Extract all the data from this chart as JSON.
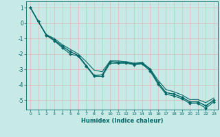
{
  "xlabel": "Humidex (Indice chaleur)",
  "background_color": "#c8eae6",
  "grid_color": "#e0b8b8",
  "line_color": "#006666",
  "xlim": [
    -0.5,
    23.5
  ],
  "ylim": [
    -5.6,
    1.4
  ],
  "yticks": [
    1,
    0,
    -1,
    -2,
    -3,
    -4,
    -5
  ],
  "xticks": [
    0,
    1,
    2,
    3,
    4,
    5,
    6,
    7,
    8,
    9,
    10,
    11,
    12,
    13,
    14,
    15,
    16,
    17,
    18,
    19,
    20,
    21,
    22,
    23
  ],
  "line1_x": [
    0,
    1,
    2,
    3,
    4,
    5,
    6,
    7,
    8,
    9,
    10,
    11,
    12,
    13,
    14,
    15,
    16,
    17,
    18,
    19,
    20,
    21,
    22,
    23
  ],
  "line1_y": [
    1.0,
    0.1,
    -0.75,
    -1.1,
    -1.5,
    -1.85,
    -2.1,
    -2.75,
    -3.4,
    -3.35,
    -2.5,
    -2.55,
    -2.55,
    -2.65,
    -2.6,
    -3.0,
    -3.85,
    -4.5,
    -4.6,
    -4.8,
    -5.1,
    -5.1,
    -5.35,
    -5.0
  ],
  "line2_x": [
    0,
    1,
    2,
    3,
    4,
    5,
    6,
    7,
    8,
    9,
    10,
    11,
    12,
    13,
    14,
    15,
    16,
    17,
    18,
    19,
    20,
    21,
    22,
    23
  ],
  "line2_y": [
    1.0,
    0.05,
    -0.75,
    -1.0,
    -1.4,
    -1.7,
    -2.0,
    -2.5,
    -3.05,
    -3.15,
    -2.45,
    -2.45,
    -2.5,
    -2.6,
    -2.55,
    -2.95,
    -3.7,
    -4.3,
    -4.45,
    -4.65,
    -4.95,
    -4.95,
    -5.15,
    -4.85
  ],
  "line3_x": [
    0,
    1,
    2,
    3,
    4,
    5,
    6,
    7,
    8,
    9,
    10,
    11,
    12,
    13,
    14,
    15,
    16,
    17,
    18,
    19,
    20,
    21,
    22,
    23
  ],
  "line3_y": [
    1.0,
    0.1,
    -0.8,
    -1.15,
    -1.6,
    -2.0,
    -2.15,
    -2.8,
    -3.45,
    -3.45,
    -2.6,
    -2.6,
    -2.6,
    -2.7,
    -2.65,
    -3.1,
    -3.95,
    -4.6,
    -4.72,
    -4.9,
    -5.2,
    -5.2,
    -5.5,
    -5.1
  ],
  "line4_x": [
    0,
    1,
    2,
    3,
    4,
    5,
    6,
    7,
    8,
    9,
    10,
    11,
    12,
    13,
    14,
    15,
    16,
    17,
    18,
    19,
    20,
    21,
    22,
    23
  ],
  "line4_y": [
    1.0,
    0.1,
    -0.8,
    -1.1,
    -1.5,
    -1.85,
    -2.1,
    -2.75,
    -3.4,
    -3.35,
    -2.5,
    -2.55,
    -2.55,
    -2.65,
    -2.6,
    -3.0,
    -3.85,
    -4.5,
    -4.6,
    -4.8,
    -5.1,
    -5.1,
    -5.35,
    -5.0
  ]
}
